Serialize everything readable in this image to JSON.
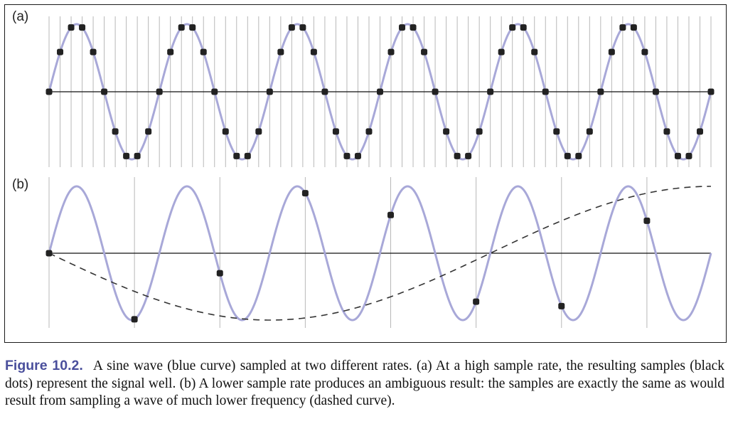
{
  "figure": {
    "panel_a_label": "(a)",
    "panel_b_label": "(b)",
    "colors": {
      "signal_curve": "#a8a8d8",
      "sample_dots": "#222222",
      "axis": "#111111",
      "sample_lines": "#b8b8b8",
      "dashed_curve": "#333333",
      "caption_label": "#4a4f9c"
    },
    "panel_a": {
      "signal_cycles": 6,
      "samples_per_cycle": 10,
      "sample_count": 61
    },
    "panel_b": {
      "signal_cycles": 6,
      "sample_count": 8,
      "alias_cycles": 0.75,
      "alias_curve_style": "dashed"
    }
  },
  "caption": {
    "label": "Figure 10.2.",
    "text": "A sine wave (blue curve) sampled at two different rates. (a) At a high sample rate, the resulting samples (black dots) represent the signal well. (b) A lower sample rate produces an ambiguous result: the samples are exactly the same as would result from sampling a wave of much lower frequency (dashed curve)."
  }
}
